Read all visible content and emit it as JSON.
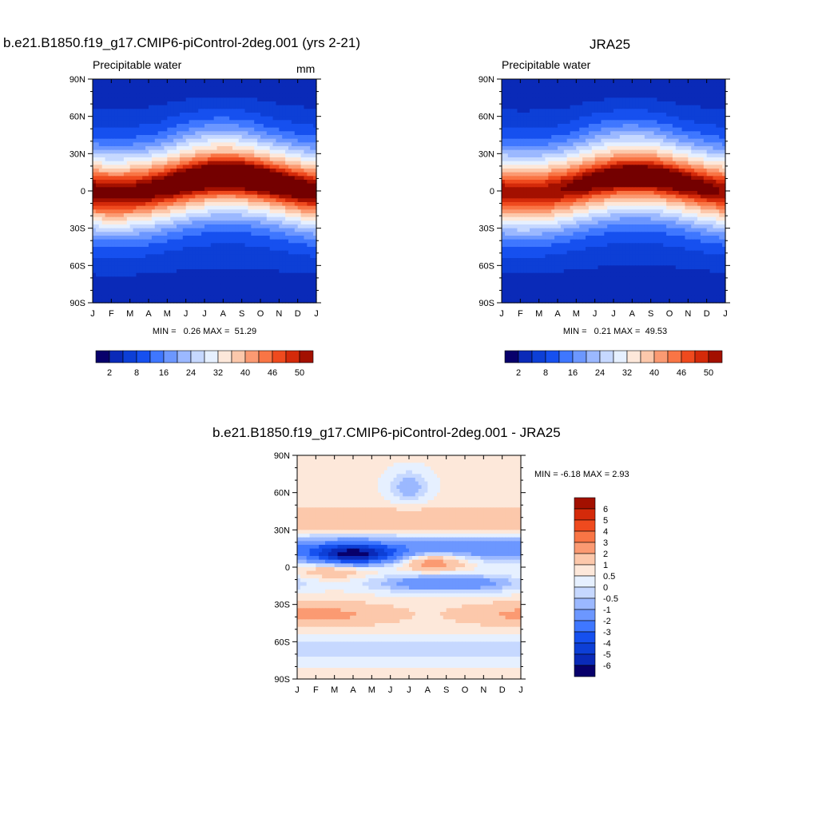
{
  "colors": {
    "abs_palette": [
      "#08006b",
      "#0a2ab8",
      "#0d3fd6",
      "#1650ef",
      "#3f77ff",
      "#6c97ff",
      "#9bb8ff",
      "#c6d8ff",
      "#e6f0ff",
      "#fde8da",
      "#fcc8ab",
      "#fb9a72",
      "#f97545",
      "#ef4a1e",
      "#d42a0a",
      "#a31000",
      "#740000"
    ],
    "diff_palette": [
      "#08006b",
      "#0a2ab8",
      "#0d3fd6",
      "#1650ef",
      "#3f77ff",
      "#6c97ff",
      "#9bb8ff",
      "#c6d8ff",
      "#e6f0ff",
      "#fde8da",
      "#fcc8ab",
      "#fb9a72",
      "#f97545",
      "#ef4a1e",
      "#d42a0a",
      "#a31000",
      "#740000"
    ]
  },
  "panels": {
    "model": {
      "title": "b.e21.B1850.f19_g17.CMIP6-piControl-2deg.001 (yrs 2-21)",
      "variable": "Precipitable water",
      "units": "mm",
      "stats": "MIN =   0.26 MAX =  51.29"
    },
    "obs": {
      "title": "JRA25",
      "variable": "Precipitable water",
      "units": "",
      "stats": "MIN =   0.21 MAX =  49.53"
    },
    "diff": {
      "title": "b.e21.B1850.f19_g17.CMIP6-piControl-2deg.001 - JRA25",
      "stats": "MIN =  -6.18 MAX =   2.93"
    }
  },
  "chart_data": [
    {
      "type": "heatmap",
      "title": "b.e21.B1850.f19_g17.CMIP6-piControl-2deg.001 (yrs 2-21)",
      "x_ticks": [
        "J",
        "F",
        "M",
        "A",
        "M",
        "J",
        "J",
        "A",
        "S",
        "O",
        "N",
        "D",
        "J"
      ],
      "y_ticks": [
        "90N",
        "60N",
        "30N",
        "0",
        "30S",
        "60S",
        "90S"
      ],
      "xlim": [
        0,
        12
      ],
      "ylim": [
        -90,
        90
      ],
      "colorbar_labels": [
        "2",
        "8",
        "16",
        "24",
        "32",
        "40",
        "46",
        "50"
      ],
      "min": 0.26,
      "max": 51.29,
      "peak_month": 7.5,
      "peak_value": 51.29,
      "trough_month": 3.5
    },
    {
      "type": "heatmap",
      "title": "JRA25",
      "x_ticks": [
        "J",
        "F",
        "M",
        "A",
        "M",
        "J",
        "J",
        "A",
        "S",
        "O",
        "N",
        "D",
        "J"
      ],
      "y_ticks": [
        "90N",
        "60N",
        "30N",
        "0",
        "30S",
        "60S",
        "90S"
      ],
      "xlim": [
        0,
        12
      ],
      "ylim": [
        -90,
        90
      ],
      "colorbar_labels": [
        "2",
        "8",
        "16",
        "24",
        "32",
        "40",
        "46",
        "50"
      ],
      "min": 0.21,
      "max": 49.53,
      "peak_month": 7.5,
      "peak_value": 49.53
    },
    {
      "type": "heatmap",
      "title": "b.e21.B1850.f19_g17.CMIP6-piControl-2deg.001 - JRA25",
      "x_ticks": [
        "J",
        "F",
        "M",
        "A",
        "M",
        "J",
        "J",
        "A",
        "S",
        "O",
        "N",
        "D",
        "J"
      ],
      "y_ticks": [
        "90N",
        "60N",
        "30N",
        "0",
        "30S",
        "60S",
        "90S"
      ],
      "xlim": [
        0,
        12
      ],
      "ylim": [
        -90,
        90
      ],
      "colorbar_labels": [
        "6",
        "5",
        "4",
        "3",
        "2",
        "1",
        "0.5",
        "0",
        "-0.5",
        "-1",
        "-2",
        "-3",
        "-4",
        "-5",
        "-6"
      ],
      "min": -6.18,
      "max": 2.93
    }
  ]
}
